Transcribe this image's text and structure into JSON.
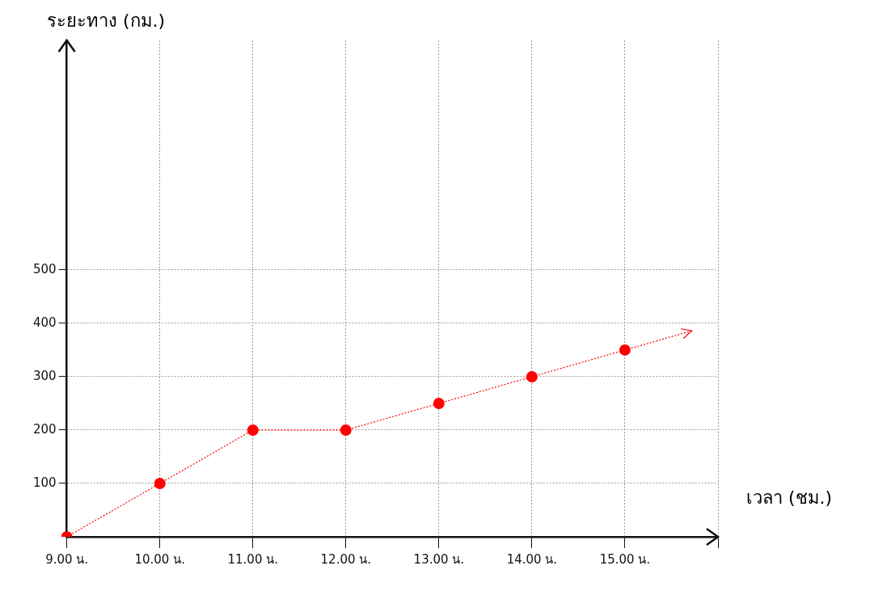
{
  "chart_data": {
    "type": "line",
    "xlabel": "เวลา (ชม.)",
    "ylabel": "ระยะทาง (กม.)",
    "categories": [
      "9.00 น.",
      "10.00 น.",
      "11.00 น.",
      "12.00 น.",
      "13.00 น.",
      "14.00 น.",
      "15.00 น.",
      null
    ],
    "series": [
      {
        "color": "#ff0000",
        "values": [
          0,
          100,
          200,
          200,
          250,
          300,
          350,
          null
        ]
      }
    ],
    "ylim": [
      0,
      930
    ],
    "yticks": [
      100,
      200,
      300,
      400,
      500
    ],
    "grid": true,
    "legend": false,
    "marker": "circle",
    "line_style": "dotted"
  }
}
